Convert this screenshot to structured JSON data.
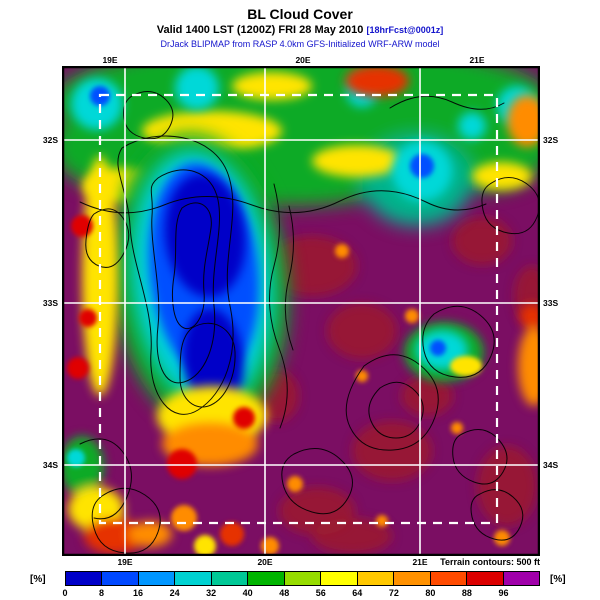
{
  "header": {
    "title": "BL Cloud Cover",
    "valid_text": "Valid 1400 LST (1200Z) FRI 28 May 2010",
    "fcst_tag": "[18hrFcst@0001z]",
    "model_line": "DrJack BLIPMAP from RASP 4.0km GFS-Initialized WRF-ARW model"
  },
  "map": {
    "top_labels": [
      "19E",
      "20E",
      "21E"
    ],
    "bottom_labels": [
      "19E",
      "20E",
      "21E"
    ],
    "left_labels": [
      "32S",
      "33S",
      "34S"
    ],
    "right_labels": [
      "32S",
      "33S",
      "34S"
    ],
    "terrain_note": "Terrain contours: 500 ft"
  },
  "colorbar": {
    "unit_left": "[%]",
    "unit_right": "[%]",
    "ticks": [
      "0",
      "8",
      "16",
      "24",
      "32",
      "40",
      "48",
      "56",
      "64",
      "72",
      "80",
      "88",
      "96"
    ],
    "cell_colors": [
      "#0000c8",
      "#0048ff",
      "#0096ff",
      "#00d2d2",
      "#00c896",
      "#00b400",
      "#96dc00",
      "#ffff00",
      "#ffc800",
      "#ff9100",
      "#ff4b00",
      "#dc0000",
      "#a000aa"
    ],
    "map_base_color": "#7b0e63"
  }
}
